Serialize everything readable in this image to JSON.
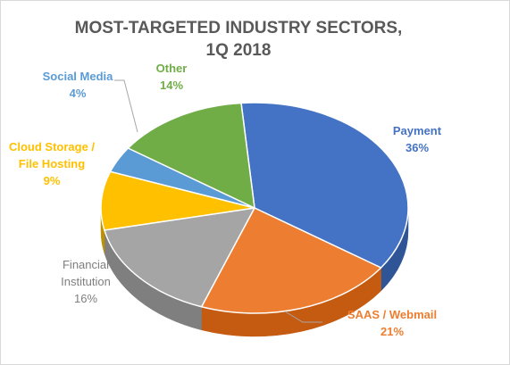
{
  "chart_data": {
    "type": "pie",
    "title_lines": [
      "MOST-TARGETED INDUSTRY SECTORS,",
      "1Q 2018"
    ],
    "slices": [
      {
        "name_lines": [
          "Payment"
        ],
        "value": 36,
        "value_label": "36%",
        "color": "#4472C4",
        "side_color": "#2F5597",
        "label_color": "#4472C4"
      },
      {
        "name_lines": [
          "SAAS / Webmail"
        ],
        "value": 21,
        "value_label": "21%",
        "color": "#ED7D31",
        "side_color": "#C55A11",
        "label_color": "#ED7D31"
      },
      {
        "name_lines": [
          "Financial",
          "Institution"
        ],
        "value": 16,
        "value_label": "16%",
        "color": "#A5A5A5",
        "side_color": "#7F7F7F",
        "label_color": "#7F7F7F"
      },
      {
        "name_lines": [
          "Cloud Storage /",
          "File Hosting"
        ],
        "value": 9,
        "value_label": "9%",
        "color": "#FFC000",
        "side_color": "#BF9000",
        "label_color": "#FFC000"
      },
      {
        "name_lines": [
          "Social Media"
        ],
        "value": 4,
        "value_label": "4%",
        "color": "#5B9BD5",
        "side_color": "#2E75B6",
        "label_color": "#5B9BD5"
      },
      {
        "name_lines": [
          "Other"
        ],
        "value": 14,
        "value_label": "14%",
        "color": "#70AD47",
        "side_color": "#548235",
        "label_color": "#70AD47"
      }
    ]
  }
}
